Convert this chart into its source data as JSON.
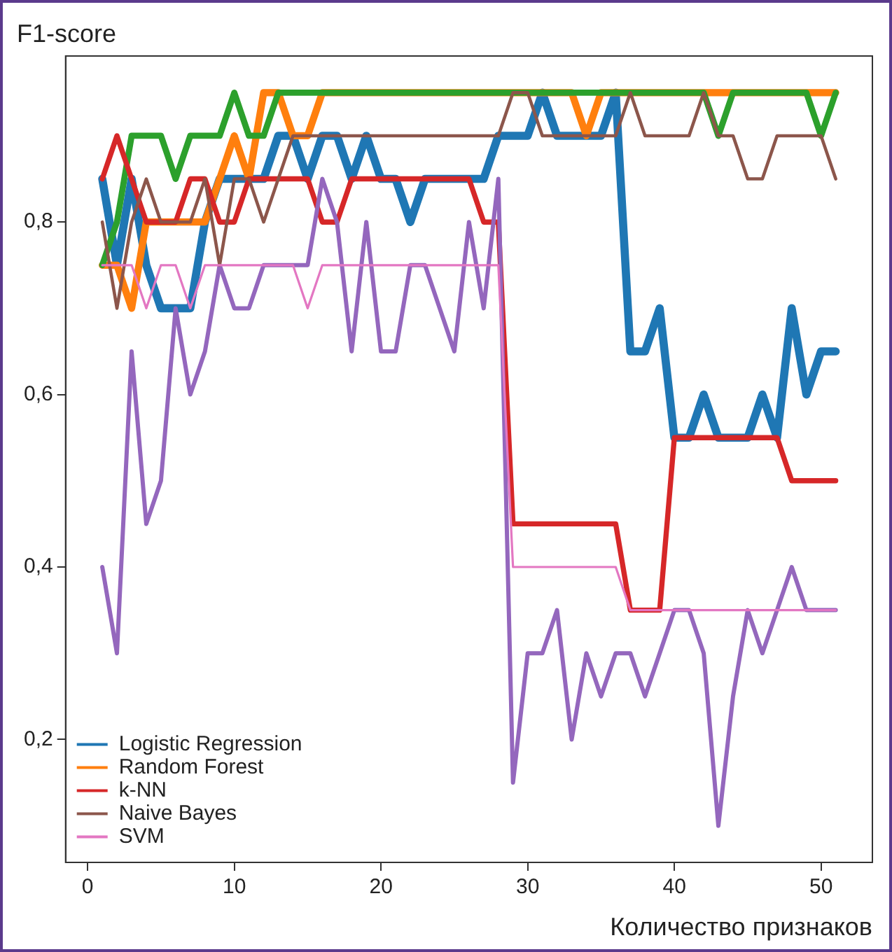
{
  "chart_data": {
    "type": "line",
    "xlabel": "Количество признаков",
    "ylabel": "F1-score",
    "x": [
      1,
      2,
      3,
      4,
      5,
      6,
      7,
      8,
      9,
      10,
      11,
      12,
      13,
      14,
      15,
      16,
      17,
      18,
      19,
      20,
      21,
      22,
      23,
      24,
      25,
      26,
      27,
      28,
      29,
      30,
      31,
      32,
      33,
      34,
      35,
      36,
      37,
      38,
      39,
      40,
      41,
      42,
      43,
      44,
      45,
      46,
      47,
      48,
      49,
      50,
      51
    ],
    "series": [
      {
        "name": "Logistic Regression",
        "color": "#1f77b4",
        "values": [
          0.85,
          0.75,
          0.85,
          0.75,
          0.7,
          0.7,
          0.7,
          0.8,
          0.85,
          0.85,
          0.85,
          0.85,
          0.9,
          0.9,
          0.85,
          0.9,
          0.9,
          0.85,
          0.9,
          0.85,
          0.85,
          0.8,
          0.85,
          0.85,
          0.85,
          0.85,
          0.85,
          0.9,
          0.9,
          0.9,
          0.95,
          0.9,
          0.9,
          0.9,
          0.9,
          0.95,
          0.65,
          0.65,
          0.7,
          0.55,
          0.55,
          0.6,
          0.55,
          0.55,
          0.55,
          0.6,
          0.55,
          0.7,
          0.6,
          0.65,
          0.65
        ]
      },
      {
        "name": "Random Forest",
        "color": "#ff7f0e",
        "values": [
          0.75,
          0.75,
          0.7,
          0.8,
          0.8,
          0.8,
          0.8,
          0.8,
          0.85,
          0.9,
          0.85,
          0.95,
          0.95,
          0.9,
          0.9,
          0.95,
          0.95,
          0.95,
          0.95,
          0.95,
          0.95,
          0.95,
          0.95,
          0.95,
          0.95,
          0.95,
          0.95,
          0.95,
          0.95,
          0.95,
          0.95,
          0.95,
          0.95,
          0.9,
          0.95,
          0.95,
          0.95,
          0.95,
          0.95,
          0.95,
          0.95,
          0.95,
          0.95,
          0.95,
          0.95,
          0.95,
          0.95,
          0.95,
          0.95,
          0.95,
          0.95
        ]
      },
      {
        "color": "#2ca02c",
        "values": [
          0.75,
          0.8,
          0.9,
          0.9,
          0.9,
          0.85,
          0.9,
          0.9,
          0.9,
          0.95,
          0.9,
          0.9,
          0.95,
          0.95,
          0.95,
          0.95,
          0.95,
          0.95,
          0.95,
          0.95,
          0.95,
          0.95,
          0.95,
          0.95,
          0.95,
          0.95,
          0.95,
          0.95,
          0.95,
          0.95,
          0.95,
          0.95,
          0.95,
          0.95,
          0.95,
          0.95,
          0.95,
          0.95,
          0.95,
          0.95,
          0.95,
          0.95,
          0.9,
          0.95,
          0.95,
          0.95,
          0.95,
          0.95,
          0.95,
          0.9,
          0.95
        ]
      },
      {
        "name": "k-NN",
        "color": "#d62728",
        "values": [
          0.85,
          0.9,
          0.85,
          0.8,
          0.8,
          0.8,
          0.85,
          0.85,
          0.8,
          0.8,
          0.85,
          0.85,
          0.85,
          0.85,
          0.85,
          0.8,
          0.8,
          0.85,
          0.85,
          0.85,
          0.85,
          0.85,
          0.85,
          0.85,
          0.85,
          0.85,
          0.8,
          0.8,
          0.45,
          0.45,
          0.45,
          0.45,
          0.45,
          0.45,
          0.45,
          0.45,
          0.35,
          0.35,
          0.35,
          0.55,
          0.55,
          0.55,
          0.55,
          0.55,
          0.55,
          0.55,
          0.55,
          0.5,
          0.5,
          0.5,
          0.5
        ]
      },
      {
        "color": "#9467bd",
        "values": [
          0.4,
          0.3,
          0.65,
          0.45,
          0.5,
          0.7,
          0.6,
          0.65,
          0.75,
          0.7,
          0.7,
          0.75,
          0.75,
          0.75,
          0.75,
          0.85,
          0.8,
          0.65,
          0.8,
          0.65,
          0.65,
          0.75,
          0.75,
          0.7,
          0.65,
          0.8,
          0.7,
          0.85,
          0.15,
          0.3,
          0.3,
          0.35,
          0.2,
          0.3,
          0.25,
          0.3,
          0.3,
          0.25,
          0.3,
          0.35,
          0.35,
          0.3,
          0.1,
          0.25,
          0.35,
          0.3,
          0.35,
          0.4,
          0.35,
          0.35,
          0.35
        ]
      },
      {
        "name": "Naive Bayes",
        "color": "#8c564b",
        "values": [
          0.8,
          0.7,
          0.8,
          0.85,
          0.8,
          0.8,
          0.8,
          0.85,
          0.75,
          0.85,
          0.85,
          0.8,
          0.85,
          0.9,
          0.9,
          0.9,
          0.9,
          0.9,
          0.9,
          0.9,
          0.9,
          0.9,
          0.9,
          0.9,
          0.9,
          0.9,
          0.9,
          0.9,
          0.95,
          0.95,
          0.9,
          0.9,
          0.9,
          0.9,
          0.9,
          0.9,
          0.95,
          0.9,
          0.9,
          0.9,
          0.9,
          0.95,
          0.9,
          0.9,
          0.85,
          0.85,
          0.9,
          0.9,
          0.9,
          0.9,
          0.85
        ]
      },
      {
        "name": "SVM",
        "color": "#e377c2",
        "values": [
          0.75,
          0.75,
          0.75,
          0.7,
          0.75,
          0.75,
          0.7,
          0.75,
          0.75,
          0.75,
          0.75,
          0.75,
          0.75,
          0.75,
          0.7,
          0.75,
          0.75,
          0.75,
          0.75,
          0.75,
          0.75,
          0.75,
          0.75,
          0.75,
          0.75,
          0.75,
          0.75,
          0.75,
          0.4,
          0.4,
          0.4,
          0.4,
          0.4,
          0.4,
          0.4,
          0.4,
          0.35,
          0.35,
          0.35,
          0.35,
          0.35,
          0.35,
          0.35,
          0.35,
          0.35,
          0.35,
          0.35,
          0.35,
          0.35,
          0.35,
          0.35
        ]
      }
    ],
    "xlim": [
      -1.5,
      53.5
    ],
    "xticks": [
      0,
      10,
      20,
      30,
      40,
      50
    ],
    "ylim": [
      0.0575,
      0.9925
    ],
    "yticks": [
      {
        "value": 0.2,
        "label": "0,2"
      },
      {
        "value": 0.4,
        "label": "0,4"
      },
      {
        "value": 0.6,
        "label": "0,6"
      },
      {
        "value": 0.8,
        "label": "0,8"
      }
    ],
    "grid": false,
    "legend": "bottom left",
    "marker": "none",
    "line_style": "solid"
  }
}
